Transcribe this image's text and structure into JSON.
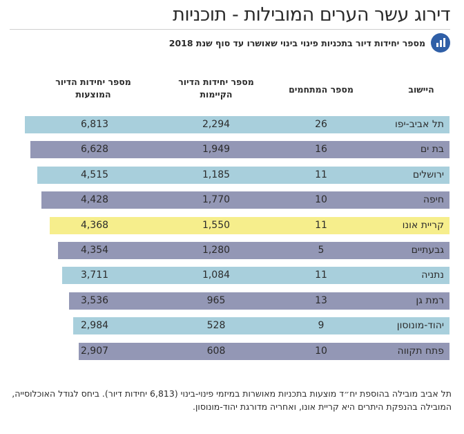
{
  "title": "דירוג עשר הערים המובילות - תוכניות",
  "subtitle": "מספר יחידות דיור בתכניות פינוי בינוי שאושרו עד סוף שנת 2018",
  "icon": "bar-chart-icon",
  "colors": {
    "light_blue": "#a8cfdc",
    "slate": "#9397b5",
    "yellow": "#f6ee8c",
    "icon": "#2f5fa7"
  },
  "chart_data": {
    "type": "table",
    "columns": [
      "היישוב",
      "מספר המתחמים",
      "מספר יחידות הדיור הקיימות",
      "מספר יחידות הדיור המוצעות"
    ],
    "rows": [
      {
        "city": "תל אביב-יפו",
        "projects": "26",
        "existing": "2,294",
        "proposed": "6,813",
        "color": "light_blue"
      },
      {
        "city": "בת ים",
        "projects": "16",
        "existing": "1,949",
        "proposed": "6,628",
        "color": "slate"
      },
      {
        "city": "ירושלים",
        "projects": "11",
        "existing": "1,185",
        "proposed": "4,515",
        "color": "light_blue"
      },
      {
        "city": "חיפה",
        "projects": "10",
        "existing": "1,770",
        "proposed": "4,428",
        "color": "slate"
      },
      {
        "city": "קריית אונו",
        "projects": "11",
        "existing": "1,550",
        "proposed": "4,368",
        "color": "yellow"
      },
      {
        "city": "גבעתיים",
        "projects": "5",
        "existing": "1,280",
        "proposed": "4,354",
        "color": "slate"
      },
      {
        "city": "נתניה",
        "projects": "11",
        "existing": "1,084",
        "proposed": "3,711",
        "color": "light_blue"
      },
      {
        "city": "רמת גן",
        "projects": "13",
        "existing": "965",
        "proposed": "3,536",
        "color": "slate"
      },
      {
        "city": "יהוד-מונוסון",
        "projects": "9",
        "existing": "528",
        "proposed": "2,984",
        "color": "light_blue"
      },
      {
        "city": "פתח תקווה",
        "projects": "10",
        "existing": "608",
        "proposed": "2,907",
        "color": "slate"
      }
    ]
  },
  "footnote": "תל אביב מובילה בהוספת יח״ד מוצעות בתכניות מאושרות במיזמי פינוי-בינוי (6,813 יחידות דיור). ביחס לגודל האוכלוסייה, המובילה בהנפקת היתרים היא קריית אונו, ואחריה מדורגת יהוד-מונוסון."
}
